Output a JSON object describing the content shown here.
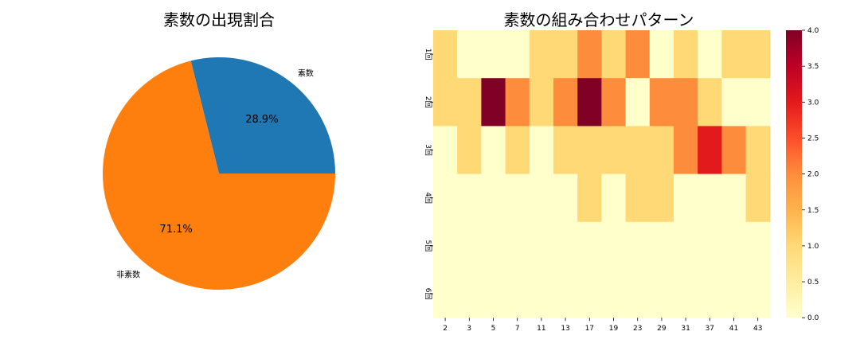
{
  "chart_data": [
    {
      "type": "pie",
      "title": "素数の出現割合",
      "labels": [
        "素数",
        "非素数"
      ],
      "values": [
        28.9,
        71.1
      ],
      "value_labels": [
        "28.9%",
        "71.1%"
      ],
      "colors": [
        "#1f77b4",
        "#ff7f0e"
      ]
    },
    {
      "type": "heatmap",
      "title": "素数の組み合わせパターン",
      "x_labels": [
        "2",
        "3",
        "5",
        "7",
        "11",
        "13",
        "17",
        "19",
        "23",
        "29",
        "31",
        "37",
        "41",
        "43"
      ],
      "y_labels": [
        "1回",
        "2回",
        "3回",
        "4回",
        "5回",
        "6回"
      ],
      "values": [
        [
          1,
          0,
          0,
          0,
          1,
          1,
          2,
          1,
          2,
          0,
          1,
          0,
          1,
          1
        ],
        [
          1,
          1,
          4,
          2,
          1,
          2,
          4,
          2,
          0,
          2,
          2,
          1,
          0,
          0
        ],
        [
          0,
          1,
          0,
          1,
          0,
          1,
          1,
          1,
          1,
          1,
          2,
          3,
          2,
          1
        ],
        [
          0,
          0,
          0,
          0,
          0,
          0,
          1,
          0,
          1,
          1,
          0,
          0,
          0,
          1
        ],
        [
          0,
          0,
          0,
          0,
          0,
          0,
          0,
          0,
          0,
          0,
          0,
          0,
          0,
          0
        ],
        [
          0,
          0,
          0,
          0,
          0,
          0,
          0,
          0,
          0,
          0,
          0,
          0,
          0,
          0
        ]
      ],
      "colorbar": {
        "min": 0,
        "max": 4,
        "ticks": [
          "0.0",
          "0.5",
          "1.0",
          "1.5",
          "2.0",
          "2.5",
          "3.0",
          "3.5",
          "4.0"
        ]
      },
      "colormap": "YlOrRd"
    }
  ]
}
